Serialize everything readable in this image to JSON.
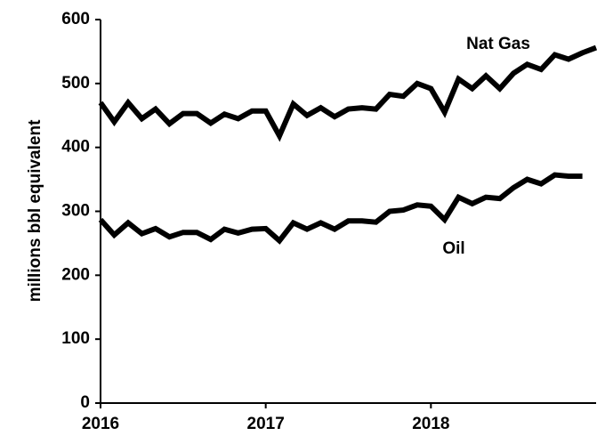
{
  "chart_data": {
    "type": "line",
    "ylabel": "millions bbl equivalent",
    "x": [
      2016,
      2016.083,
      2016.167,
      2016.25,
      2016.333,
      2016.417,
      2016.5,
      2016.583,
      2016.667,
      2016.75,
      2016.833,
      2016.917,
      2017,
      2017.083,
      2017.167,
      2017.25,
      2017.333,
      2017.417,
      2017.5,
      2017.583,
      2017.667,
      2017.75,
      2017.833,
      2017.917,
      2018,
      2018.083,
      2018.167,
      2018.25,
      2018.333,
      2018.417,
      2018.5,
      2018.583,
      2018.667,
      2018.75,
      2018.833,
      2018.917,
      2019
    ],
    "series": [
      {
        "name": "Nat Gas",
        "color": "#000000",
        "values": [
          470,
          440,
          470,
          445,
          460,
          437,
          453,
          453,
          438,
          452,
          445,
          457,
          457,
          418,
          468,
          450,
          462,
          448,
          460,
          462,
          460,
          483,
          480,
          500,
          492,
          455,
          507,
          492,
          512,
          492,
          516,
          530,
          522,
          545,
          538,
          548,
          556
        ]
      },
      {
        "name": "Oil",
        "color": "#000000",
        "values": [
          287,
          263,
          282,
          265,
          273,
          260,
          267,
          267,
          256,
          272,
          266,
          272,
          273,
          254,
          282,
          272,
          282,
          272,
          285,
          285,
          283,
          300,
          302,
          310,
          308,
          287,
          322,
          312,
          322,
          320,
          337,
          350,
          343,
          357,
          355,
          355,
          null
        ]
      }
    ],
    "xlim": [
      2016,
      2019
    ],
    "xticks": [
      2016,
      2017,
      2018
    ],
    "ylim": [
      0,
      600
    ],
    "yticks": [
      0,
      100,
      200,
      300,
      400,
      500,
      600
    ],
    "grid": false
  }
}
